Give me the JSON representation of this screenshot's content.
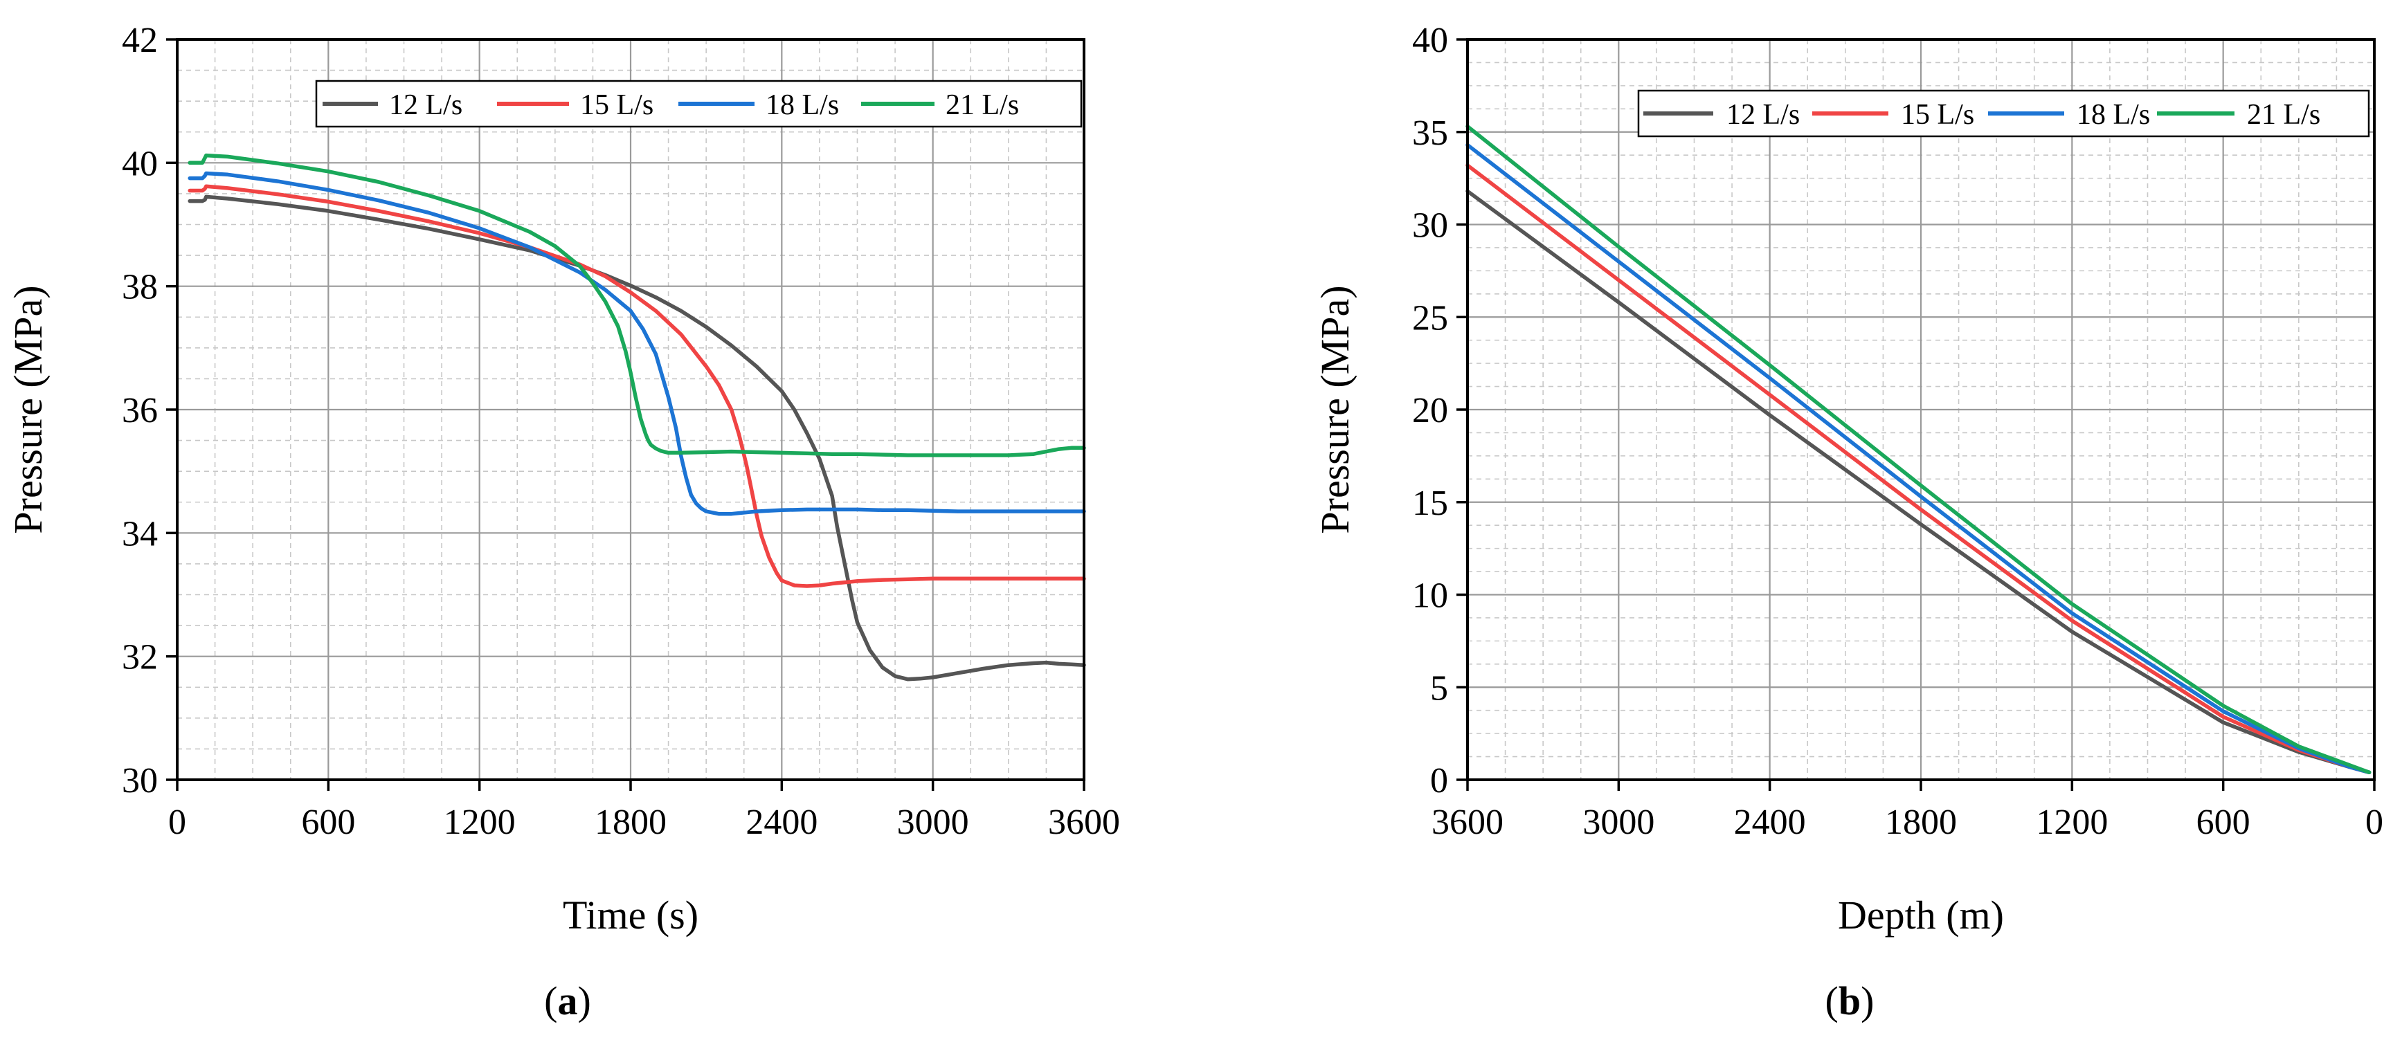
{
  "series_colors": [
    "#555555",
    "#f04444",
    "#1c74d4",
    "#1aa85a"
  ],
  "chart_data": [
    {
      "type": "line",
      "panel_label": "a",
      "xlabel": "Time (s)",
      "ylabel": "Pressure (MPa)",
      "xlim": [
        0,
        3600
      ],
      "ylim": [
        30,
        42
      ],
      "xticks": [
        "0",
        "600",
        "1200",
        "1800",
        "2400",
        "3000",
        "3600"
      ],
      "yticks": [
        "30",
        "32",
        "34",
        "36",
        "38",
        "40",
        "42"
      ],
      "grid": true,
      "legend_position": "top",
      "series": [
        {
          "name": "12 L/s",
          "x": [
            50,
            100,
            110,
            115,
            200,
            400,
            600,
            800,
            1000,
            1200,
            1400,
            1600,
            1700,
            1800,
            1900,
            2000,
            2100,
            2200,
            2300,
            2400,
            2450,
            2500,
            2550,
            2600,
            2620,
            2650,
            2680,
            2700,
            2750,
            2800,
            2850,
            2900,
            2950,
            3000,
            3100,
            3200,
            3300,
            3400,
            3450,
            3500,
            3550,
            3600
          ],
          "y": [
            39.38,
            39.38,
            39.4,
            39.45,
            39.42,
            39.33,
            39.22,
            39.08,
            38.93,
            38.76,
            38.58,
            38.33,
            38.18,
            38.01,
            37.82,
            37.6,
            37.34,
            37.04,
            36.7,
            36.3,
            36.0,
            35.62,
            35.2,
            34.6,
            34.1,
            33.5,
            32.9,
            32.55,
            32.1,
            31.82,
            31.68,
            31.63,
            31.64,
            31.66,
            31.73,
            31.8,
            31.86,
            31.89,
            31.9,
            31.88,
            31.87,
            31.86
          ]
        },
        {
          "name": "15 L/s",
          "x": [
            50,
            100,
            110,
            115,
            200,
            400,
            600,
            800,
            1000,
            1200,
            1400,
            1600,
            1700,
            1800,
            1900,
            2000,
            2100,
            2150,
            2200,
            2230,
            2260,
            2280,
            2300,
            2320,
            2350,
            2380,
            2400,
            2450,
            2500,
            2550,
            2600,
            2700,
            2800,
            2900,
            3000,
            3100,
            3200,
            3300,
            3400,
            3500,
            3600
          ],
          "y": [
            39.55,
            39.55,
            39.58,
            39.62,
            39.59,
            39.49,
            39.37,
            39.22,
            39.05,
            38.86,
            38.63,
            38.35,
            38.16,
            37.9,
            37.6,
            37.22,
            36.7,
            36.4,
            36.0,
            35.6,
            35.1,
            34.7,
            34.3,
            33.95,
            33.6,
            33.35,
            33.23,
            33.15,
            33.14,
            33.15,
            33.18,
            33.22,
            33.24,
            33.25,
            33.26,
            33.26,
            33.26,
            33.26,
            33.26,
            33.26,
            33.26
          ]
        },
        {
          "name": "18 L/s",
          "x": [
            50,
            100,
            110,
            115,
            200,
            400,
            600,
            800,
            1000,
            1200,
            1400,
            1600,
            1700,
            1800,
            1850,
            1900,
            1950,
            1980,
            2000,
            2020,
            2040,
            2060,
            2080,
            2100,
            2150,
            2200,
            2250,
            2300,
            2400,
            2500,
            2600,
            2700,
            2800,
            2900,
            3000,
            3100,
            3200,
            3300,
            3400,
            3500,
            3600
          ],
          "y": [
            39.75,
            39.75,
            39.79,
            39.83,
            39.81,
            39.7,
            39.56,
            39.39,
            39.19,
            38.94,
            38.63,
            38.22,
            37.94,
            37.6,
            37.3,
            36.9,
            36.2,
            35.7,
            35.25,
            34.9,
            34.62,
            34.48,
            34.4,
            34.35,
            34.31,
            34.31,
            34.33,
            34.35,
            34.37,
            34.38,
            34.38,
            34.38,
            34.37,
            34.37,
            34.36,
            34.35,
            34.35,
            34.35,
            34.35,
            34.35,
            34.35
          ]
        },
        {
          "name": "21 L/s",
          "x": [
            50,
            100,
            110,
            115,
            200,
            400,
            600,
            800,
            1000,
            1200,
            1400,
            1500,
            1600,
            1650,
            1700,
            1750,
            1780,
            1800,
            1820,
            1840,
            1860,
            1870,
            1880,
            1900,
            1920,
            1950,
            2000,
            2100,
            2200,
            2300,
            2400,
            2500,
            2600,
            2700,
            2800,
            2900,
            3000,
            3100,
            3200,
            3300,
            3400,
            3450,
            3500,
            3550,
            3600
          ],
          "y": [
            40.0,
            40.0,
            40.08,
            40.12,
            40.1,
            39.99,
            39.86,
            39.69,
            39.47,
            39.22,
            38.88,
            38.65,
            38.32,
            38.05,
            37.75,
            37.35,
            36.95,
            36.6,
            36.2,
            35.85,
            35.6,
            35.5,
            35.43,
            35.37,
            35.33,
            35.3,
            35.3,
            35.31,
            35.32,
            35.31,
            35.3,
            35.29,
            35.28,
            35.28,
            35.27,
            35.26,
            35.26,
            35.26,
            35.26,
            35.26,
            35.28,
            35.32,
            35.36,
            35.38,
            35.38
          ]
        }
      ]
    },
    {
      "type": "line",
      "panel_label": "b",
      "xlabel": "Depth (m)",
      "ylabel": "Pressure (MPa)",
      "xlim": [
        3600,
        0
      ],
      "ylim": [
        0,
        40
      ],
      "xticks": [
        "3600",
        "3000",
        "2400",
        "1800",
        "1200",
        "600",
        "0"
      ],
      "yticks": [
        "0",
        "5",
        "10",
        "15",
        "20",
        "25",
        "30",
        "35",
        "40"
      ],
      "grid": true,
      "legend_position": "top-right",
      "series": [
        {
          "name": "12 L/s",
          "x": [
            3600,
            3000,
            2400,
            1800,
            1200,
            600,
            300,
            100,
            20
          ],
          "y": [
            31.8,
            25.8,
            19.7,
            13.8,
            8.0,
            3.1,
            1.5,
            0.7,
            0.4
          ]
        },
        {
          "name": "15 L/s",
          "x": [
            3600,
            3000,
            2400,
            1800,
            1200,
            600,
            300,
            100,
            20
          ],
          "y": [
            33.2,
            27.0,
            20.8,
            14.6,
            8.6,
            3.4,
            1.6,
            0.7,
            0.4
          ]
        },
        {
          "name": "18 L/s",
          "x": [
            3600,
            3000,
            2400,
            1800,
            1200,
            600,
            300,
            100,
            20
          ],
          "y": [
            34.3,
            28.0,
            21.7,
            15.3,
            9.0,
            3.7,
            1.7,
            0.7,
            0.4
          ]
        },
        {
          "name": "21 L/s",
          "x": [
            3600,
            3000,
            2400,
            1800,
            1200,
            600,
            300,
            100,
            20
          ],
          "y": [
            35.3,
            28.8,
            22.4,
            15.9,
            9.5,
            4.0,
            1.8,
            0.8,
            0.4
          ]
        }
      ]
    }
  ]
}
